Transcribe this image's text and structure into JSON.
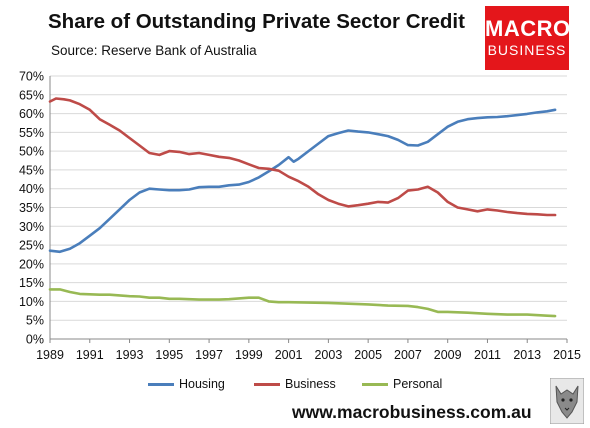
{
  "title": "Share of Outstanding Private Sector Credit",
  "subtitle": "Source: Reserve Bank of Australia",
  "logo": {
    "line1": "MACRO",
    "line2": "BUSINESS"
  },
  "footer_url": "www.macrobusiness.com.au",
  "colors": {
    "Housing": "#4a7ebb",
    "Business": "#be4b48",
    "Personal": "#98b954",
    "grid": "#d9d9d9",
    "logo_bg": "#e4161b"
  },
  "chart_data": {
    "type": "line",
    "title": "Share of Outstanding Private Sector Credit",
    "xlabel": "",
    "ylabel": "",
    "xlim": [
      1989,
      2015
    ],
    "ylim": [
      0,
      70
    ],
    "x_ticks": [
      "1989",
      "1991",
      "1993",
      "1995",
      "1997",
      "1999",
      "2001",
      "2003",
      "2005",
      "2007",
      "2009",
      "2011",
      "2013",
      "2015"
    ],
    "y_ticks": [
      "0%",
      "5%",
      "10%",
      "15%",
      "20%",
      "25%",
      "30%",
      "35%",
      "40%",
      "45%",
      "50%",
      "55%",
      "60%",
      "65%",
      "70%"
    ],
    "grid": "horizontal",
    "legend_position": "bottom",
    "series": [
      {
        "name": "Housing",
        "color": "#4a7ebb",
        "x": [
          1989.0,
          1989.5,
          1990.0,
          1990.5,
          1991.0,
          1991.5,
          1992.0,
          1992.5,
          1993.0,
          1993.5,
          1994.0,
          1994.5,
          1995.0,
          1995.5,
          1996.0,
          1996.5,
          1997.0,
          1997.5,
          1998.0,
          1998.5,
          1999.0,
          1999.5,
          2000.0,
          2000.5,
          2001.0,
          2001.25,
          2001.5,
          2002.0,
          2002.5,
          2003.0,
          2003.5,
          2004.0,
          2004.5,
          2005.0,
          2005.5,
          2006.0,
          2006.5,
          2007.0,
          2007.5,
          2008.0,
          2008.5,
          2009.0,
          2009.5,
          2010.0,
          2010.5,
          2011.0,
          2011.5,
          2012.0,
          2012.5,
          2013.0,
          2013.5,
          2014.0,
          2014.4
        ],
        "values": [
          23.5,
          23.2,
          24.0,
          25.5,
          27.5,
          29.5,
          32.0,
          34.5,
          37.0,
          39.0,
          40.0,
          39.8,
          39.6,
          39.6,
          39.8,
          40.4,
          40.5,
          40.5,
          40.9,
          41.1,
          41.8,
          43.0,
          44.6,
          46.3,
          48.4,
          47.2,
          48.0,
          50.0,
          52.0,
          54.0,
          54.8,
          55.5,
          55.2,
          55.0,
          54.5,
          54.0,
          53.0,
          51.6,
          51.5,
          52.5,
          54.5,
          56.5,
          57.8,
          58.5,
          58.8,
          59.0,
          59.1,
          59.3,
          59.6,
          59.9,
          60.3,
          60.6,
          61.0
        ]
      },
      {
        "name": "Business",
        "color": "#be4b48",
        "x": [
          1989.0,
          1989.3,
          1989.7,
          1990.0,
          1990.5,
          1991.0,
          1991.5,
          1992.0,
          1992.5,
          1993.0,
          1993.5,
          1994.0,
          1994.5,
          1995.0,
          1995.5,
          1996.0,
          1996.5,
          1997.0,
          1997.5,
          1998.0,
          1998.5,
          1999.0,
          1999.5,
          2000.0,
          2000.5,
          2001.0,
          2001.5,
          2002.0,
          2002.5,
          2003.0,
          2003.5,
          2004.0,
          2004.5,
          2005.0,
          2005.5,
          2006.0,
          2006.5,
          2007.0,
          2007.5,
          2008.0,
          2008.5,
          2009.0,
          2009.5,
          2010.0,
          2010.5,
          2011.0,
          2011.5,
          2012.0,
          2012.5,
          2013.0,
          2013.5,
          2014.0,
          2014.4
        ],
        "values": [
          63.2,
          64.0,
          63.8,
          63.5,
          62.5,
          61.0,
          58.5,
          57.0,
          55.5,
          53.5,
          51.5,
          49.5,
          49.0,
          50.0,
          49.8,
          49.2,
          49.5,
          49.0,
          48.5,
          48.2,
          47.5,
          46.5,
          45.5,
          45.3,
          44.8,
          43.2,
          42.0,
          40.5,
          38.5,
          37.0,
          36.0,
          35.3,
          35.6,
          36.0,
          36.5,
          36.3,
          37.5,
          39.5,
          39.8,
          40.5,
          39.0,
          36.5,
          35.0,
          34.5,
          34.0,
          34.5,
          34.2,
          33.8,
          33.5,
          33.3,
          33.2,
          33.0,
          33.0
        ]
      },
      {
        "name": "Personal",
        "color": "#98b954",
        "x": [
          1989.0,
          1989.5,
          1990.0,
          1990.5,
          1991.0,
          1991.5,
          1992.0,
          1992.5,
          1993.0,
          1993.5,
          1994.0,
          1994.5,
          1995.0,
          1995.5,
          1996.0,
          1996.5,
          1997.0,
          1997.5,
          1998.0,
          1998.5,
          1999.0,
          1999.5,
          2000.0,
          2000.5,
          2001.0,
          2002.0,
          2003.0,
          2004.0,
          2005.0,
          2006.0,
          2007.0,
          2007.5,
          2008.0,
          2008.5,
          2009.0,
          2010.0,
          2011.0,
          2012.0,
          2013.0,
          2014.0,
          2014.4
        ],
        "values": [
          13.2,
          13.2,
          12.5,
          12.0,
          11.9,
          11.8,
          11.8,
          11.6,
          11.4,
          11.3,
          11.0,
          11.0,
          10.7,
          10.7,
          10.6,
          10.5,
          10.5,
          10.5,
          10.6,
          10.8,
          11.0,
          11.0,
          10.0,
          9.8,
          9.8,
          9.7,
          9.6,
          9.4,
          9.2,
          8.9,
          8.8,
          8.5,
          8.0,
          7.2,
          7.2,
          7.0,
          6.7,
          6.5,
          6.5,
          6.2,
          6.1
        ]
      }
    ]
  }
}
